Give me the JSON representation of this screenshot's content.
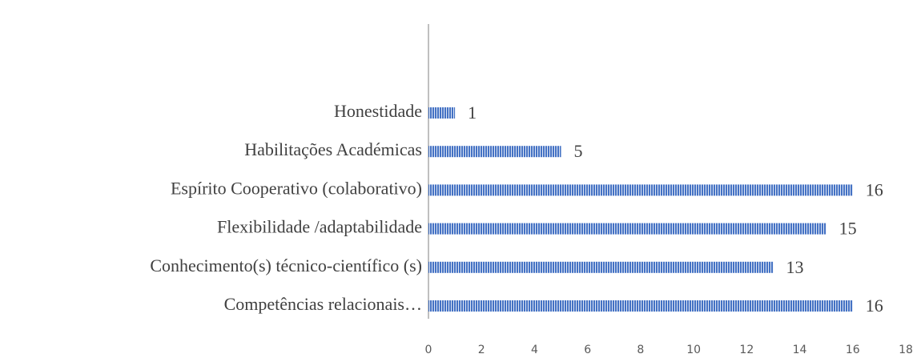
{
  "chart_data": {
    "type": "bar",
    "orientation": "horizontal",
    "categories": [
      "Honestidade",
      "Habilitações Académicas",
      "Espírito Cooperativo (colaborativo)",
      "Flexibilidade /adaptabilidade",
      "Conhecimento(s) técnico-científico (s)",
      "Competências relacionais…"
    ],
    "values": [
      1,
      5,
      16,
      15,
      13,
      16
    ],
    "color": "#4472c4",
    "xlim": [
      0,
      18
    ],
    "xticks": [
      0,
      2,
      4,
      6,
      8,
      10,
      12,
      14,
      16,
      18
    ],
    "grid": false
  }
}
